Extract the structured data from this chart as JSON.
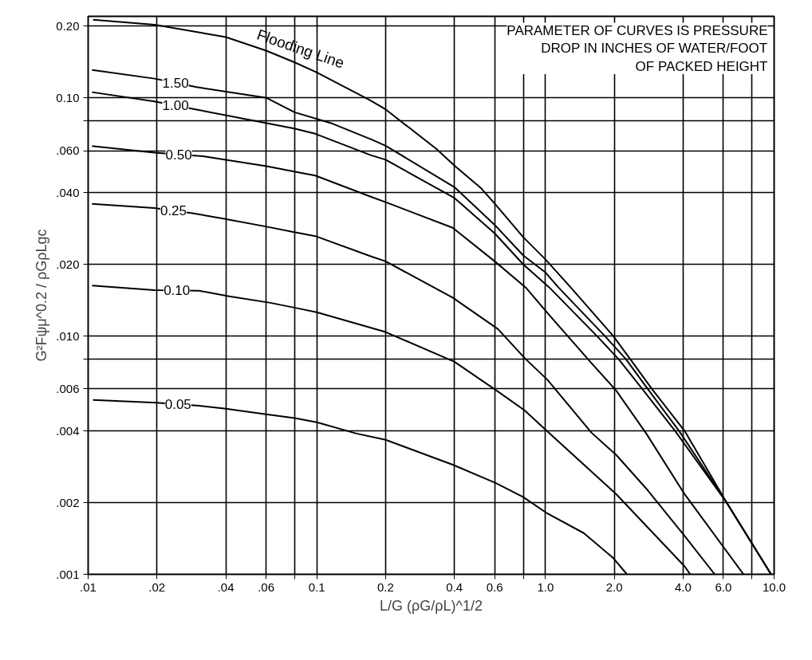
{
  "chart_data": {
    "type": "line",
    "xlabel": "L/G (ρG/ρL)^1/2",
    "ylabel": "G²Fψμ^0.2 / ρGρLgc",
    "annotations": [
      "PARAMETER OF CURVES IS PRESSURE\nDROP IN INCHES OF WATER/FOOT\nOF PACKED HEIGHT"
    ],
    "log": "xy",
    "grid": true,
    "marker": "none",
    "line_style": "solid",
    "xlim": [
      0.01,
      10
    ],
    "ylim": [
      0.001,
      0.22
    ],
    "xticks": [
      {
        "value": 0.01,
        "label": ".01"
      },
      {
        "value": 0.02,
        "label": ".02"
      },
      {
        "value": 0.04,
        "label": ".04"
      },
      {
        "value": 0.06,
        "label": ".06"
      },
      {
        "value": 0.08,
        "label": null
      },
      {
        "value": 0.1,
        "label": "0.1"
      },
      {
        "value": 0.2,
        "label": "0.2"
      },
      {
        "value": 0.4,
        "label": "0.4"
      },
      {
        "value": 0.6,
        "label": "0.6"
      },
      {
        "value": 0.8,
        "label": null
      },
      {
        "value": 1,
        "label": "1.0"
      },
      {
        "value": 2,
        "label": "2.0"
      },
      {
        "value": 4,
        "label": "4.0"
      },
      {
        "value": 6,
        "label": "6.0"
      },
      {
        "value": 8,
        "label": null
      },
      {
        "value": 10,
        "label": "10.0"
      }
    ],
    "yticks": [
      {
        "value": 0.001,
        "label": ".001"
      },
      {
        "value": 0.002,
        "label": ".002"
      },
      {
        "value": 0.004,
        "label": ".004"
      },
      {
        "value": 0.006,
        "label": ".006"
      },
      {
        "value": 0.008,
        "label": null
      },
      {
        "value": 0.01,
        "label": ".010"
      },
      {
        "value": 0.02,
        "label": ".020"
      },
      {
        "value": 0.04,
        "label": ".040"
      },
      {
        "value": 0.06,
        "label": ".060"
      },
      {
        "value": 0.08,
        "label": null
      },
      {
        "value": 0.1,
        "label": "0.10"
      },
      {
        "value": 0.2,
        "label": "0.20"
      }
    ],
    "series": [
      {
        "name": "Flooding Line",
        "color": "#000000",
        "x": [
          0.0105,
          0.0195,
          0.04,
          0.06,
          0.08,
          0.1,
          0.17,
          0.2,
          0.334,
          0.4,
          0.52,
          0.6,
          0.8,
          1.0,
          1.29,
          1.98,
          2.35,
          2.92,
          4.06,
          6.2,
          9.7
        ],
        "values": [
          0.213,
          0.203,
          0.18,
          0.158,
          0.141,
          0.128,
          0.098,
          0.0895,
          0.061,
          0.052,
          0.042,
          0.036,
          0.026,
          0.021,
          0.016,
          0.01,
          0.008,
          0.006,
          0.004,
          0.002,
          0.001
        ]
      },
      {
        "name": "1.50",
        "color": "#000000",
        "x": [
          0.0104,
          0.0195,
          0.0298,
          0.0603,
          0.08,
          0.117,
          0.173,
          0.2,
          0.4,
          0.6,
          0.8,
          1.0,
          1.14,
          1.82,
          2.25,
          2.8,
          3.84,
          6.2,
          9.7
        ],
        "values": [
          0.131,
          0.1205,
          0.111,
          0.1,
          0.087,
          0.078,
          0.067,
          0.063,
          0.0422,
          0.0293,
          0.0218,
          0.0185,
          0.016,
          0.01,
          0.008,
          0.006,
          0.004,
          0.002,
          0.001
        ]
      },
      {
        "name": "1.00",
        "color": "#000000",
        "x": [
          0.0104,
          0.0195,
          0.0298,
          0.0603,
          0.0797,
          0.0985,
          0.173,
          0.2,
          0.4,
          0.6,
          0.8,
          1.04,
          1.68,
          2.09,
          2.65,
          3.69,
          6.2,
          9.7
        ],
        "values": [
          0.1057,
          0.0966,
          0.0893,
          0.0784,
          0.0744,
          0.0707,
          0.0574,
          0.055,
          0.038,
          0.027,
          0.02,
          0.016,
          0.01,
          0.008,
          0.006,
          0.004,
          0.002,
          0.001
        ]
      },
      {
        "name": "0.50",
        "color": "#000000",
        "x": [
          0.0104,
          0.0195,
          0.0318,
          0.0603,
          0.0797,
          0.0985,
          0.173,
          0.2,
          0.393,
          0.6,
          0.82,
          1.02,
          1.59,
          2.04,
          2.76,
          4.06,
          7.35
        ],
        "values": [
          0.0628,
          0.0589,
          0.0569,
          0.0517,
          0.0491,
          0.0472,
          0.0384,
          0.0365,
          0.0285,
          0.0206,
          0.016,
          0.0125,
          0.0077,
          0.0059,
          0.0039,
          0.00217,
          0.001
        ]
      },
      {
        "name": "0.25",
        "color": "#000000",
        "x": [
          0.0104,
          0.0195,
          0.0286,
          0.0394,
          0.0603,
          0.0797,
          0.0985,
          0.173,
          0.2,
          0.393,
          0.62,
          0.82,
          1.02,
          1.59,
          2.04,
          2.76,
          4.06,
          5.5
        ],
        "values": [
          0.0359,
          0.0345,
          0.0328,
          0.0311,
          0.0288,
          0.0273,
          0.0263,
          0.0216,
          0.0206,
          0.0145,
          0.0107,
          0.008,
          0.00656,
          0.00393,
          0.00317,
          0.00229,
          0.00145,
          0.001
        ]
      },
      {
        "name": "0.10",
        "color": "#000000",
        "x": [
          0.0104,
          0.0195,
          0.0306,
          0.0414,
          0.0626,
          0.082,
          0.1,
          0.2,
          0.4,
          0.614,
          0.81,
          1.02,
          2.04,
          4.06,
          4.3
        ],
        "values": [
          0.0163,
          0.0156,
          0.0155,
          0.0147,
          0.0138,
          0.0131,
          0.0126,
          0.0104,
          0.0078,
          0.00589,
          0.00488,
          0.00398,
          0.00217,
          0.00108,
          0.001
        ]
      },
      {
        "name": "0.05",
        "color": "#000000",
        "x": [
          0.0105,
          0.02,
          0.0306,
          0.04,
          0.06,
          0.08,
          0.1,
          0.149,
          0.2,
          0.395,
          0.605,
          0.8,
          1.02,
          1.47,
          1.98,
          2.27
        ],
        "values": [
          0.0054,
          0.00525,
          0.0051,
          0.00496,
          0.0047,
          0.00453,
          0.00435,
          0.0039,
          0.00367,
          0.00288,
          0.00242,
          0.00211,
          0.0018,
          0.00149,
          0.00117,
          0.001
        ]
      }
    ]
  }
}
